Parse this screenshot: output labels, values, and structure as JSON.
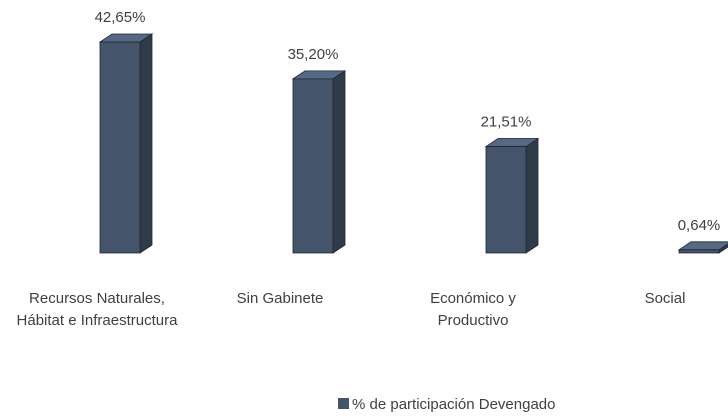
{
  "chart_data": {
    "type": "bar3d",
    "categories": [
      "Recursos Naturales, Hábitat e Infraestructura",
      "Sin Gabinete",
      "Económico y Productivo",
      "Social"
    ],
    "series": [
      {
        "name": "% de participación Devengado",
        "color": "#44546a",
        "values": [
          42.65,
          35.2,
          21.51,
          0.64
        ],
        "value_labels": [
          "42,65%",
          "35,20%",
          "21,51%",
          "0,64%"
        ]
      }
    ],
    "legend": "bottom"
  }
}
